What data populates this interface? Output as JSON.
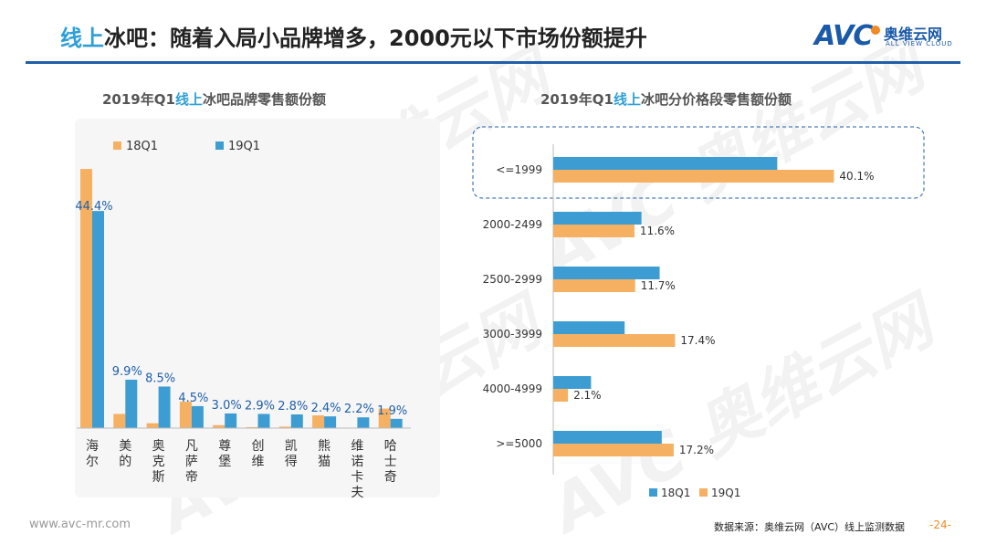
{
  "header": {
    "title_highlight": "线上",
    "title_rest": "冰吧：随着入局小品牌增多，2000元以下市场份额提升",
    "logo_letters": "AVC",
    "logo_cn": "奥维云网",
    "logo_en": "ALL VIEW CLOUD"
  },
  "colors": {
    "s18": "#f5b062",
    "s19": "#3d9dd2",
    "accent": "#2e9fd6",
    "rule": "#1f5fa8"
  },
  "chart_data": [
    {
      "type": "bar",
      "title_prefix": "2019年Q1",
      "title_highlight": "线上",
      "title_suffix": "冰吧品牌零售额份额",
      "categories": [
        "海尔",
        "美的",
        "奥克斯",
        "凡萨帝",
        "尊堡",
        "创维",
        "凯得",
        "熊猫",
        "维诺卡夫",
        "哈士奇"
      ],
      "series": [
        {
          "name": "18Q1",
          "values": [
            53.0,
            2.9,
            1.0,
            5.4,
            0.6,
            0.2,
            0.3,
            2.6,
            0.1,
            4.0
          ]
        },
        {
          "name": "19Q1",
          "values": [
            44.4,
            9.9,
            8.5,
            4.5,
            3.0,
            2.9,
            2.8,
            2.4,
            2.2,
            1.9
          ]
        }
      ],
      "data_labels": [
        "44.4%",
        "9.9%",
        "8.5%",
        "4.5%",
        "3.0%",
        "2.9%",
        "2.8%",
        "2.4%",
        "2.2%",
        "1.9%"
      ],
      "ylim": [
        0,
        56
      ],
      "legend": [
        "18Q1",
        "19Q1"
      ]
    },
    {
      "type": "bar",
      "orientation": "horizontal",
      "title_prefix": "2019年Q1",
      "title_highlight": "线上",
      "title_suffix": "冰吧分价格段零售额份额",
      "categories": [
        "<=1999",
        "2000-2499",
        "2500-2999",
        "3000-3999",
        "4000-4999",
        ">=5000"
      ],
      "series": [
        {
          "name": "18Q1",
          "values": [
            32.0,
            12.6,
            15.2,
            10.2,
            5.4,
            15.5
          ]
        },
        {
          "name": "19Q1",
          "values": [
            40.1,
            11.6,
            11.7,
            17.4,
            2.1,
            17.2
          ]
        }
      ],
      "data_labels": [
        "40.1%",
        "11.6%",
        "11.7%",
        "17.4%",
        "2.1%",
        "17.2%"
      ],
      "xlim": [
        0,
        45
      ],
      "legend": [
        "18Q1",
        "19Q1"
      ]
    }
  ],
  "footer": {
    "url": "www.avc-mr.com",
    "source": "数据来源：奥维云网（AVC）线上监测数据",
    "page": "-24-"
  }
}
